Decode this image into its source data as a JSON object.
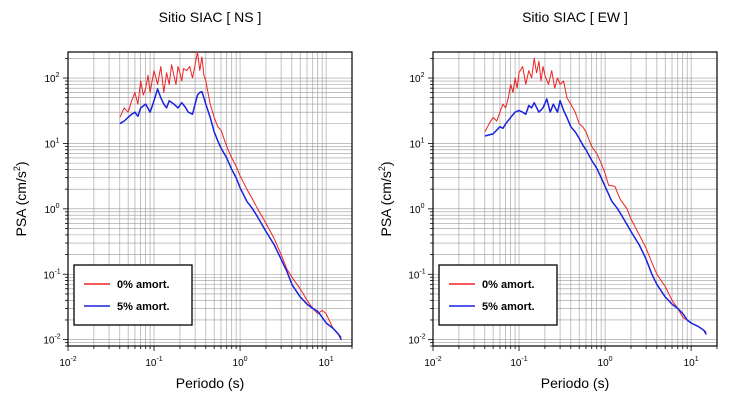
{
  "chart_data": [
    {
      "type": "line",
      "title": "Sitio SIAC [ NS ]",
      "xlabel": "Periodo (s)",
      "ylabel_main": "PSA (cm/s",
      "ylabel_sup": "2",
      "ylabel_close": ")",
      "x_scale": "log",
      "y_scale": "log",
      "xlim": [
        0.01,
        20
      ],
      "ylim": [
        0.008,
        250
      ],
      "grid": true,
      "legend_position": "bottom-left",
      "x_ticks": [
        {
          "value": 0.01,
          "base": "10",
          "exp": "-2"
        },
        {
          "value": 0.1,
          "base": "10",
          "exp": "-1"
        },
        {
          "value": 1,
          "base": "10",
          "exp": "0"
        },
        {
          "value": 10,
          "base": "10",
          "exp": "1"
        }
      ],
      "y_ticks": [
        {
          "value": 0.01,
          "base": "10",
          "exp": "-2"
        },
        {
          "value": 0.1,
          "base": "10",
          "exp": "-1"
        },
        {
          "value": 1,
          "base": "10",
          "exp": "0"
        },
        {
          "value": 10,
          "base": "10",
          "exp": "1"
        },
        {
          "value": 100,
          "base": "10",
          "exp": "2"
        }
      ],
      "series": [
        {
          "name": "0% amort.",
          "color": "#ee2222",
          "x": [
            0.04,
            0.045,
            0.05,
            0.055,
            0.06,
            0.065,
            0.07,
            0.075,
            0.08,
            0.085,
            0.09,
            0.095,
            0.1,
            0.11,
            0.12,
            0.13,
            0.14,
            0.15,
            0.16,
            0.17,
            0.18,
            0.19,
            0.2,
            0.21,
            0.22,
            0.24,
            0.26,
            0.28,
            0.3,
            0.32,
            0.34,
            0.36,
            0.38,
            0.4,
            0.45,
            0.5,
            0.55,
            0.6,
            0.7,
            0.8,
            0.9,
            1.0,
            1.2,
            1.4,
            1.6,
            2.0,
            2.5,
            3.0,
            3.5,
            4.0,
            5.0,
            6.0,
            7.0,
            8.0,
            9.0,
            10.0,
            12.0,
            14.0,
            15.0
          ],
          "y": [
            25,
            35,
            30,
            45,
            60,
            40,
            90,
            55,
            70,
            110,
            60,
            90,
            130,
            80,
            150,
            60,
            120,
            80,
            160,
            110,
            80,
            150,
            120,
            90,
            140,
            130,
            150,
            100,
            160,
            250,
            130,
            210,
            110,
            90,
            40,
            25,
            18,
            16,
            9,
            6,
            4.5,
            3.2,
            2.0,
            1.4,
            1.0,
            0.6,
            0.35,
            0.2,
            0.12,
            0.09,
            0.06,
            0.04,
            0.03,
            0.025,
            0.028,
            0.025,
            0.015,
            0.012,
            0.011
          ]
        },
        {
          "name": "5% amort.",
          "color": "#1a22dd",
          "x": [
            0.04,
            0.045,
            0.05,
            0.055,
            0.06,
            0.065,
            0.07,
            0.08,
            0.09,
            0.1,
            0.11,
            0.12,
            0.13,
            0.14,
            0.15,
            0.17,
            0.19,
            0.21,
            0.23,
            0.25,
            0.28,
            0.3,
            0.32,
            0.34,
            0.36,
            0.38,
            0.4,
            0.45,
            0.5,
            0.55,
            0.6,
            0.7,
            0.8,
            0.9,
            1.0,
            1.2,
            1.4,
            1.6,
            2.0,
            2.5,
            3.0,
            3.5,
            4.0,
            5.0,
            6.0,
            7.0,
            8.0,
            9.0,
            10.0,
            12.0,
            14.0,
            15.0
          ],
          "y": [
            20,
            22,
            25,
            28,
            30,
            26,
            35,
            40,
            30,
            45,
            68,
            50,
            40,
            35,
            45,
            40,
            35,
            42,
            36,
            30,
            28,
            40,
            55,
            60,
            62,
            50,
            40,
            25,
            15,
            11,
            8.5,
            6.0,
            4.0,
            3.0,
            2.1,
            1.3,
            1.0,
            0.75,
            0.45,
            0.28,
            0.17,
            0.11,
            0.07,
            0.045,
            0.035,
            0.03,
            0.027,
            0.022,
            0.018,
            0.015,
            0.012,
            0.01
          ]
        }
      ]
    },
    {
      "type": "line",
      "title": "Sitio SIAC [ EW ]",
      "xlabel": "Periodo (s)",
      "ylabel_main": "PSA (cm/s",
      "ylabel_sup": "2",
      "ylabel_close": ")",
      "x_scale": "log",
      "y_scale": "log",
      "xlim": [
        0.01,
        20
      ],
      "ylim": [
        0.008,
        250
      ],
      "grid": true,
      "legend_position": "bottom-left",
      "x_ticks": [
        {
          "value": 0.01,
          "base": "10",
          "exp": "-2"
        },
        {
          "value": 0.1,
          "base": "10",
          "exp": "-1"
        },
        {
          "value": 1,
          "base": "10",
          "exp": "0"
        },
        {
          "value": 10,
          "base": "10",
          "exp": "1"
        }
      ],
      "y_ticks": [
        {
          "value": 0.01,
          "base": "10",
          "exp": "-2"
        },
        {
          "value": 0.1,
          "base": "10",
          "exp": "-1"
        },
        {
          "value": 1,
          "base": "10",
          "exp": "0"
        },
        {
          "value": 10,
          "base": "10",
          "exp": "1"
        },
        {
          "value": 100,
          "base": "10",
          "exp": "2"
        }
      ],
      "series": [
        {
          "name": "0% amort.",
          "color": "#ee2222",
          "x": [
            0.04,
            0.045,
            0.05,
            0.055,
            0.06,
            0.065,
            0.07,
            0.075,
            0.08,
            0.085,
            0.09,
            0.095,
            0.1,
            0.11,
            0.12,
            0.13,
            0.14,
            0.15,
            0.16,
            0.17,
            0.18,
            0.19,
            0.2,
            0.22,
            0.24,
            0.26,
            0.28,
            0.3,
            0.33,
            0.36,
            0.4,
            0.45,
            0.5,
            0.55,
            0.6,
            0.7,
            0.8,
            0.9,
            1.0,
            1.1,
            1.3,
            1.5,
            1.8,
            2.0,
            2.5,
            3.0,
            3.5,
            4.0,
            5.0,
            6.0,
            7.0,
            8.0,
            9.0,
            10.0,
            12.0,
            14.0,
            15.0
          ],
          "y": [
            15,
            20,
            25,
            22,
            30,
            40,
            35,
            50,
            80,
            60,
            100,
            70,
            120,
            150,
            80,
            130,
            100,
            200,
            120,
            180,
            90,
            150,
            110,
            80,
            130,
            70,
            100,
            80,
            90,
            50,
            40,
            30,
            20,
            18,
            15,
            9,
            7,
            5,
            3.5,
            2.3,
            2.2,
            1.4,
            1.0,
            0.7,
            0.4,
            0.25,
            0.15,
            0.1,
            0.065,
            0.04,
            0.03,
            0.022,
            0.02,
            0.018,
            0.016,
            0.014,
            0.013
          ]
        },
        {
          "name": "5% amort.",
          "color": "#1a22dd",
          "x": [
            0.04,
            0.045,
            0.05,
            0.055,
            0.06,
            0.065,
            0.07,
            0.08,
            0.09,
            0.1,
            0.11,
            0.12,
            0.13,
            0.14,
            0.15,
            0.17,
            0.19,
            0.21,
            0.23,
            0.25,
            0.28,
            0.3,
            0.33,
            0.36,
            0.4,
            0.45,
            0.5,
            0.55,
            0.6,
            0.7,
            0.8,
            0.9,
            1.0,
            1.2,
            1.4,
            1.6,
            2.0,
            2.5,
            3.0,
            3.5,
            4.0,
            5.0,
            6.0,
            7.0,
            8.0,
            9.0,
            10.0,
            12.0,
            14.0,
            15.0
          ],
          "y": [
            13,
            13.5,
            14,
            16,
            18,
            17,
            20,
            25,
            30,
            32,
            30,
            28,
            38,
            35,
            42,
            30,
            35,
            48,
            30,
            40,
            30,
            45,
            32,
            25,
            18,
            15,
            12,
            9.5,
            8.0,
            5.5,
            4.2,
            3.0,
            2.2,
            1.3,
            1.0,
            0.75,
            0.45,
            0.28,
            0.17,
            0.1,
            0.07,
            0.045,
            0.035,
            0.03,
            0.025,
            0.02,
            0.018,
            0.016,
            0.014,
            0.012
          ]
        }
      ]
    }
  ]
}
